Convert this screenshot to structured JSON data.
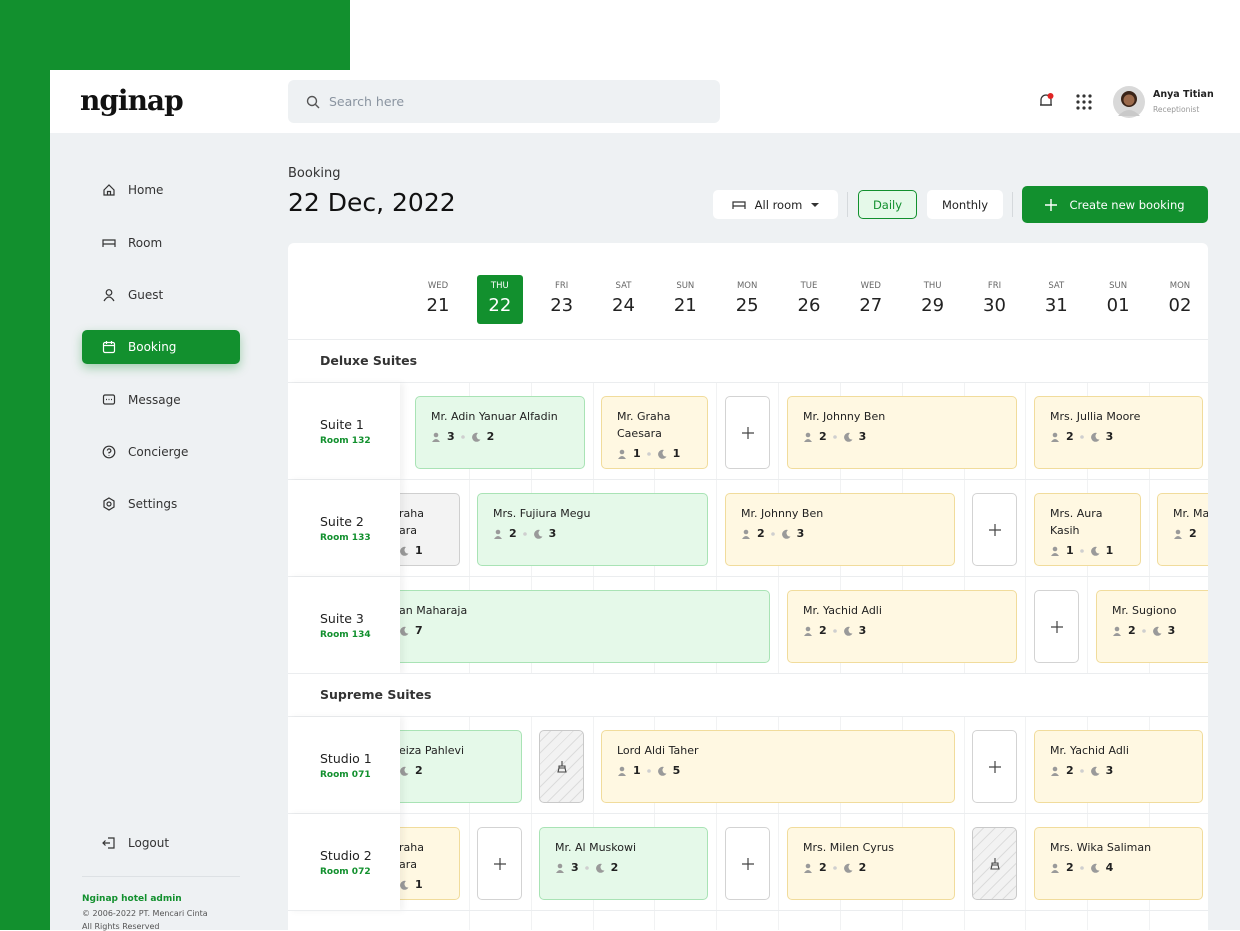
{
  "header": {
    "logo": "nginap",
    "search_placeholder": "Search here",
    "user": {
      "name": "Anya Titian",
      "role": "Receptionist"
    }
  },
  "sidebar": {
    "menu": [
      "Home",
      "Room",
      "Guest",
      "Booking",
      "Message",
      "Concierge",
      "Settings"
    ],
    "logout": "Logout",
    "footer": {
      "title": "Nginap hotel admin",
      "copyright": "© 2006-2022 PT. Mencari Cinta",
      "rights": "All Rights Reserved"
    }
  },
  "page": {
    "section": "Booking",
    "date": "22 Dec, 2022",
    "filter": "All room",
    "views": [
      "Daily",
      "Monthly"
    ],
    "create": "Create new booking"
  },
  "calendar": {
    "days": [
      {
        "dow": "WED",
        "date": "21"
      },
      {
        "dow": "THU",
        "date": "22"
      },
      {
        "dow": "FRI",
        "date": "23"
      },
      {
        "dow": "SAT",
        "date": "24"
      },
      {
        "dow": "SUN",
        "date": "21"
      },
      {
        "dow": "MON",
        "date": "25"
      },
      {
        "dow": "TUE",
        "date": "26"
      },
      {
        "dow": "WED",
        "date": "27"
      },
      {
        "dow": "THU",
        "date": "29"
      },
      {
        "dow": "FRI",
        "date": "30"
      },
      {
        "dow": "SAT",
        "date": "31"
      },
      {
        "dow": "SUN",
        "date": "01"
      },
      {
        "dow": "MON",
        "date": "02"
      }
    ],
    "groups": [
      {
        "name": "Deluxe Suites",
        "rooms": [
          {
            "name": "Suite 1",
            "room": "Room 132",
            "bookings": [
              {
                "name": "Mr. Adin Yanuar Alfadin",
                "guests": 3,
                "nights": 2
              },
              {
                "name": "Mr. Graha Caesara",
                "guests": 1,
                "nights": 1
              },
              {
                "name": "Mr. Johnny Ben",
                "guests": 2,
                "nights": 3
              },
              {
                "name": "Mrs. Jullia Moore",
                "guests": 2,
                "nights": 3
              }
            ]
          },
          {
            "name": "Suite 2",
            "room": "Room 133",
            "bookings": [
              {
                "name": "raha\nara",
                "nights": 1
              },
              {
                "name": "Mrs. Fujiura Megu",
                "guests": 2,
                "nights": 3
              },
              {
                "name": "Mr. Johnny Ben",
                "guests": 2,
                "nights": 3
              },
              {
                "name": "Mrs. Aura Kasih",
                "guests": 1,
                "nights": 1
              },
              {
                "name": "Mr. Ma",
                "guests": 2
              }
            ]
          },
          {
            "name": "Suite 3",
            "room": "Room 134",
            "bookings": [
              {
                "name": "an Maharaja",
                "nights": 7
              },
              {
                "name": "Mr. Yachid Adli",
                "guests": 2,
                "nights": 3
              },
              {
                "name": "Mr. Sugiono",
                "guests": 2,
                "nights": 3
              }
            ]
          }
        ]
      },
      {
        "name": "Supreme Suites",
        "rooms": [
          {
            "name": "Studio 1",
            "room": "Room 071",
            "bookings": [
              {
                "name": "eiza Pahlevi",
                "nights": 2
              },
              {
                "name": "Lord Aldi Taher",
                "guests": 1,
                "nights": 5
              },
              {
                "name": "Mr. Yachid Adli",
                "guests": 2,
                "nights": 3
              }
            ]
          },
          {
            "name": "Studio 2",
            "room": "Room 072",
            "bookings": [
              {
                "name": "raha\nara",
                "nights": 1
              },
              {
                "name": "Mr. Al Muskowi",
                "guests": 3,
                "nights": 2
              },
              {
                "name": "Mrs. Milen Cyrus",
                "guests": 2,
                "nights": 2
              },
              {
                "name": "Mrs. Wika Saliman",
                "guests": 2,
                "nights": 4
              }
            ]
          }
        ]
      }
    ]
  }
}
